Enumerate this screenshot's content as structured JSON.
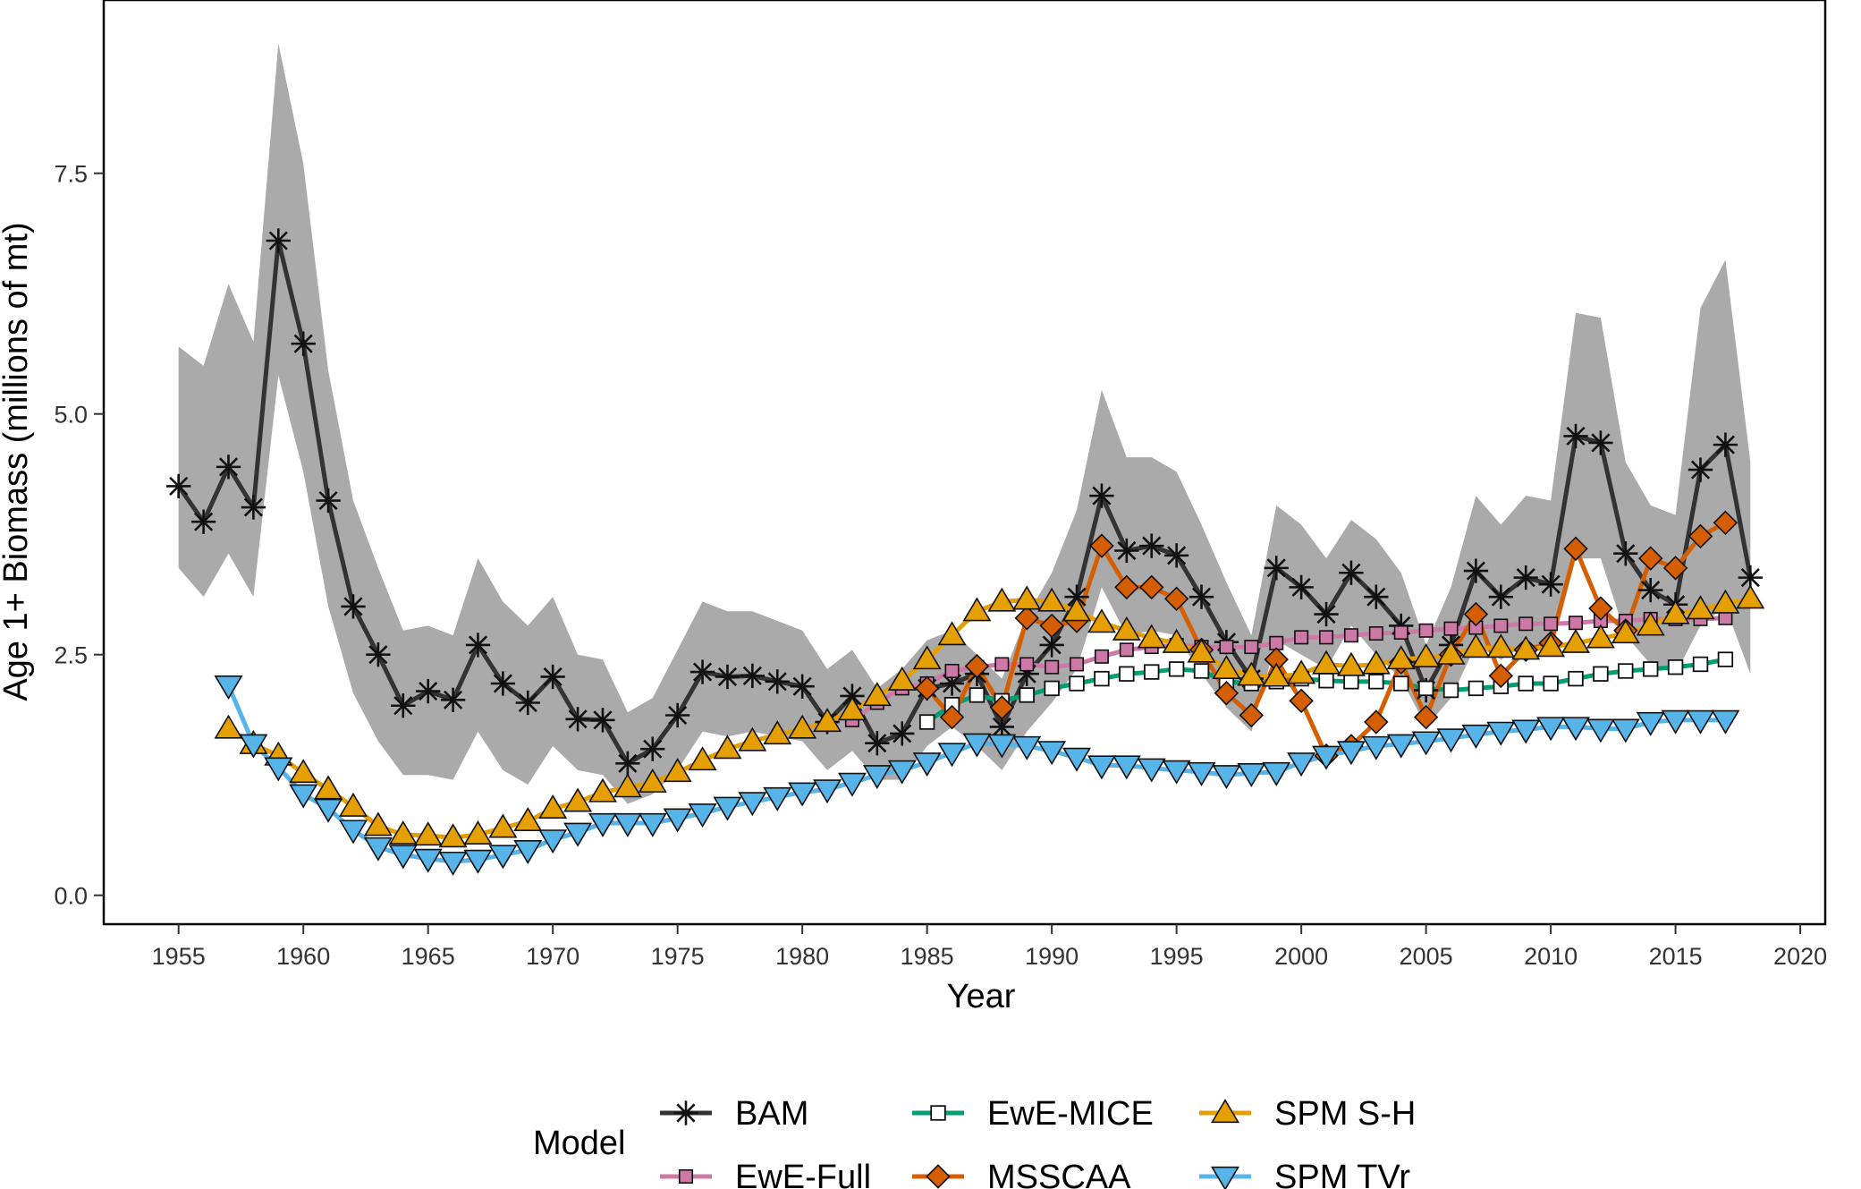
{
  "chart_data": {
    "type": "line",
    "title": "",
    "xlabel": "Year",
    "ylabel": "Age 1+ Biomass (millions of mt)",
    "xlim": [
      1952,
      2021
    ],
    "ylim": [
      -0.3,
      9.3
    ],
    "x_ticks": [
      1955,
      1960,
      1965,
      1970,
      1975,
      1980,
      1985,
      1990,
      1995,
      2000,
      2005,
      2010,
      2015,
      2020
    ],
    "x_tick_labels": [
      "1955",
      "1960",
      "1965",
      "1970",
      "1975",
      "1980",
      "1985",
      "1990",
      "1995",
      "2000",
      "2005",
      "2010",
      "2015",
      "2020"
    ],
    "y_ticks": [
      0,
      2.5,
      5,
      7.5
    ],
    "y_tick_labels": [
      "0.0",
      "2.5",
      "5.0",
      "7.5"
    ],
    "grid": false,
    "legend": {
      "title": "Model",
      "placement": "bottom",
      "order": [
        "BAM",
        "EwE-Full",
        "EwE-MICE",
        "MSSCAA",
        "SPM S-H",
        "SPM TVr"
      ]
    },
    "band": {
      "name": "BAM uncertainty",
      "color": "#aaaaaa",
      "x": [
        1955,
        1956,
        1957,
        1958,
        1959,
        1960,
        1961,
        1962,
        1963,
        1964,
        1965,
        1966,
        1967,
        1968,
        1969,
        1970,
        1971,
        1972,
        1973,
        1974,
        1975,
        1976,
        1977,
        1978,
        1979,
        1980,
        1981,
        1982,
        1983,
        1984,
        1985,
        1986,
        1987,
        1988,
        1989,
        1990,
        1991,
        1992,
        1993,
        1994,
        1995,
        1996,
        1997,
        1998,
        1999,
        2000,
        2001,
        2002,
        2003,
        2004,
        2005,
        2006,
        2007,
        2008,
        2009,
        2010,
        2011,
        2012,
        2013,
        2014,
        2015,
        2016,
        2017,
        2018
      ],
      "upper": [
        5.7,
        5.5,
        6.35,
        5.75,
        8.85,
        7.6,
        5.45,
        4.1,
        3.4,
        2.75,
        2.8,
        2.7,
        3.5,
        3.05,
        2.8,
        3.1,
        2.5,
        2.45,
        1.9,
        2.05,
        2.55,
        3.05,
        2.95,
        2.95,
        2.85,
        2.75,
        2.35,
        2.55,
        2.15,
        2.35,
        2.65,
        2.75,
        2.5,
        2.25,
        2.9,
        3.35,
        4.0,
        5.25,
        4.55,
        4.55,
        4.4,
        3.85,
        3.25,
        2.7,
        4.05,
        3.85,
        3.5,
        3.9,
        3.7,
        3.35,
        2.6,
        3.2,
        4.15,
        3.85,
        4.15,
        4.1,
        6.05,
        6.0,
        4.5,
        4.05,
        3.95,
        6.1,
        6.6,
        4.5
      ],
      "lower": [
        3.4,
        3.1,
        3.55,
        3.1,
        5.4,
        4.4,
        3.0,
        2.1,
        1.6,
        1.25,
        1.25,
        1.2,
        1.7,
        1.3,
        1.15,
        1.55,
        1.3,
        1.25,
        0.95,
        1.05,
        1.3,
        1.7,
        1.65,
        1.7,
        1.65,
        1.6,
        1.3,
        1.5,
        1.2,
        1.2,
        1.55,
        1.75,
        1.55,
        1.3,
        1.7,
        2.0,
        2.35,
        3.2,
        2.7,
        2.75,
        2.7,
        2.3,
        1.95,
        1.7,
        2.65,
        2.5,
        2.35,
        2.8,
        2.5,
        2.25,
        1.75,
        2.05,
        2.6,
        2.45,
        2.6,
        2.5,
        3.5,
        3.5,
        2.7,
        2.4,
        2.3,
        2.8,
        3.0,
        2.3
      ]
    },
    "series": [
      {
        "name": "BAM",
        "color": "#333333",
        "marker": "asterisk",
        "x": [
          1955,
          1956,
          1957,
          1958,
          1959,
          1960,
          1961,
          1962,
          1963,
          1964,
          1965,
          1966,
          1967,
          1968,
          1969,
          1970,
          1971,
          1972,
          1973,
          1974,
          1975,
          1976,
          1977,
          1978,
          1979,
          1980,
          1981,
          1982,
          1983,
          1984,
          1985,
          1986,
          1987,
          1988,
          1989,
          1990,
          1991,
          1992,
          1993,
          1994,
          1995,
          1996,
          1997,
          1998,
          1999,
          2000,
          2001,
          2002,
          2003,
          2004,
          2005,
          2006,
          2007,
          2008,
          2009,
          2010,
          2011,
          2012,
          2013,
          2014,
          2015,
          2016,
          2017,
          2018
        ],
        "values": [
          4.25,
          3.88,
          4.45,
          4.03,
          6.8,
          5.73,
          4.1,
          3.0,
          2.5,
          1.97,
          2.12,
          2.03,
          2.6,
          2.2,
          2.0,
          2.27,
          1.83,
          1.82,
          1.37,
          1.52,
          1.87,
          2.32,
          2.27,
          2.28,
          2.22,
          2.17,
          1.8,
          2.07,
          1.58,
          1.68,
          2.15,
          2.2,
          2.3,
          1.75,
          2.3,
          2.6,
          3.1,
          4.15,
          3.58,
          3.63,
          3.53,
          3.1,
          2.63,
          2.25,
          3.4,
          3.2,
          2.92,
          3.35,
          3.1,
          2.8,
          2.13,
          2.6,
          3.37,
          3.1,
          3.3,
          3.23,
          4.77,
          4.7,
          3.55,
          3.17,
          3.02,
          4.42,
          4.68,
          3.3
        ]
      },
      {
        "name": "EwE-Full",
        "color": "#cc79a7",
        "marker": "square",
        "x": [
          1982,
          1983,
          1984,
          1985,
          1986,
          1987,
          1988,
          1989,
          1990,
          1991,
          1992,
          1993,
          1994,
          1995,
          1996,
          1997,
          1998,
          1999,
          2000,
          2001,
          2002,
          2003,
          2004,
          2005,
          2006,
          2007,
          2008,
          2009,
          2010,
          2011,
          2012,
          2013,
          2014,
          2015,
          2016,
          2017
        ],
        "values": [
          1.82,
          2.0,
          2.15,
          2.2,
          2.33,
          2.37,
          2.4,
          2.4,
          2.37,
          2.4,
          2.48,
          2.55,
          2.58,
          2.6,
          2.58,
          2.58,
          2.58,
          2.62,
          2.68,
          2.68,
          2.7,
          2.72,
          2.73,
          2.75,
          2.77,
          2.78,
          2.8,
          2.82,
          2.82,
          2.83,
          2.85,
          2.85,
          2.87,
          2.87,
          2.87,
          2.88
        ]
      },
      {
        "name": "EwE-MICE",
        "color": "#009e73",
        "marker": "square-open",
        "x": [
          1985,
          1986,
          1987,
          1988,
          1989,
          1990,
          1991,
          1992,
          1993,
          1994,
          1995,
          1996,
          1997,
          1998,
          1999,
          2000,
          2001,
          2002,
          2003,
          2004,
          2005,
          2006,
          2007,
          2008,
          2009,
          2010,
          2011,
          2012,
          2013,
          2014,
          2015,
          2016,
          2017
        ],
        "values": [
          1.8,
          1.98,
          2.08,
          2.02,
          2.08,
          2.15,
          2.2,
          2.25,
          2.3,
          2.32,
          2.35,
          2.33,
          2.22,
          2.2,
          2.22,
          2.25,
          2.23,
          2.22,
          2.22,
          2.2,
          2.15,
          2.13,
          2.15,
          2.17,
          2.2,
          2.2,
          2.25,
          2.3,
          2.33,
          2.35,
          2.37,
          2.4,
          2.45
        ]
      },
      {
        "name": "MSSCAA",
        "color": "#d55e00",
        "marker": "diamond",
        "x": [
          1985,
          1986,
          1987,
          1988,
          1989,
          1990,
          1991,
          1992,
          1993,
          1994,
          1995,
          1996,
          1997,
          1998,
          1999,
          2000,
          2001,
          2002,
          2003,
          2004,
          2005,
          2006,
          2007,
          2008,
          2009,
          2010,
          2011,
          2012,
          2013,
          2014,
          2015,
          2016,
          2017
        ],
        "values": [
          2.15,
          1.85,
          2.38,
          1.95,
          2.88,
          2.8,
          2.85,
          3.63,
          3.2,
          3.2,
          3.08,
          2.55,
          2.1,
          1.87,
          2.45,
          2.02,
          1.45,
          1.55,
          1.8,
          2.42,
          1.85,
          2.5,
          2.92,
          2.28,
          2.55,
          2.62,
          3.6,
          2.98,
          2.75,
          3.5,
          3.4,
          3.73,
          3.87
        ]
      },
      {
        "name": "SPM S-H",
        "color": "#e69f00",
        "marker": "triangle-up",
        "x": [
          1957,
          1958,
          1959,
          1960,
          1961,
          1962,
          1963,
          1964,
          1965,
          1966,
          1967,
          1968,
          1969,
          1970,
          1971,
          1972,
          1973,
          1974,
          1975,
          1976,
          1977,
          1978,
          1979,
          1980,
          1981,
          1982,
          1983,
          1984,
          1985,
          1986,
          1987,
          1988,
          1989,
          1990,
          1991,
          1992,
          1993,
          1994,
          1995,
          1996,
          1997,
          1998,
          1999,
          2000,
          2001,
          2002,
          2003,
          2004,
          2005,
          2006,
          2007,
          2008,
          2009,
          2010,
          2011,
          2012,
          2013,
          2014,
          2015,
          2016,
          2017,
          2018
        ],
        "values": [
          1.73,
          1.57,
          1.45,
          1.27,
          1.1,
          0.92,
          0.72,
          0.63,
          0.62,
          0.6,
          0.63,
          0.7,
          0.77,
          0.9,
          0.97,
          1.07,
          1.12,
          1.17,
          1.28,
          1.4,
          1.52,
          1.6,
          1.67,
          1.73,
          1.8,
          1.92,
          2.07,
          2.23,
          2.45,
          2.7,
          2.95,
          3.05,
          3.07,
          3.05,
          2.95,
          2.83,
          2.75,
          2.67,
          2.62,
          2.52,
          2.35,
          2.28,
          2.27,
          2.3,
          2.4,
          2.38,
          2.4,
          2.45,
          2.47,
          2.5,
          2.57,
          2.57,
          2.55,
          2.58,
          2.62,
          2.67,
          2.72,
          2.8,
          2.92,
          2.97,
          3.03,
          3.08
        ]
      },
      {
        "name": "SPM TVr",
        "color": "#56b4e9",
        "marker": "triangle-down",
        "x": [
          1957,
          1958,
          1959,
          1960,
          1961,
          1962,
          1963,
          1964,
          1965,
          1966,
          1967,
          1968,
          1969,
          1970,
          1971,
          1972,
          1973,
          1974,
          1975,
          1976,
          1977,
          1978,
          1979,
          1980,
          1981,
          1982,
          1983,
          1984,
          1985,
          1986,
          1987,
          1988,
          1989,
          1990,
          1991,
          1992,
          1993,
          1994,
          1995,
          1996,
          1997,
          1998,
          1999,
          2000,
          2001,
          2002,
          2003,
          2004,
          2005,
          2006,
          2007,
          2008,
          2009,
          2010,
          2011,
          2012,
          2013,
          2014,
          2015,
          2016,
          2017
        ],
        "values": [
          2.18,
          1.57,
          1.33,
          1.05,
          0.9,
          0.68,
          0.5,
          0.42,
          0.38,
          0.35,
          0.37,
          0.42,
          0.47,
          0.58,
          0.65,
          0.75,
          0.75,
          0.75,
          0.8,
          0.85,
          0.92,
          0.97,
          1.02,
          1.07,
          1.1,
          1.17,
          1.25,
          1.3,
          1.38,
          1.48,
          1.58,
          1.57,
          1.55,
          1.5,
          1.43,
          1.35,
          1.35,
          1.32,
          1.3,
          1.28,
          1.25,
          1.27,
          1.28,
          1.38,
          1.45,
          1.5,
          1.55,
          1.57,
          1.6,
          1.63,
          1.67,
          1.7,
          1.72,
          1.75,
          1.75,
          1.73,
          1.73,
          1.8,
          1.82,
          1.82,
          1.82
        ]
      }
    ]
  }
}
